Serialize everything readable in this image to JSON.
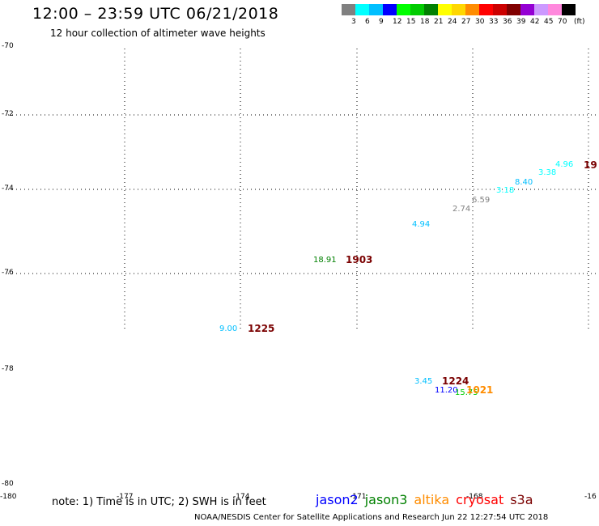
{
  "header": {
    "title": "12:00 – 23:59 UTC 06/21/2018",
    "subtitle": "12 hour collection of altimeter wave heights"
  },
  "legend": {
    "unit": "(ft)",
    "swatches": [
      {
        "label": "3",
        "color": "#808080"
      },
      {
        "label": "6",
        "color": "#00ffff"
      },
      {
        "label": "9",
        "color": "#00bfff"
      },
      {
        "label": "12",
        "color": "#0000ff"
      },
      {
        "label": "15",
        "color": "#00ff00"
      },
      {
        "label": "18",
        "color": "#00cc00"
      },
      {
        "label": "21",
        "color": "#008000"
      },
      {
        "label": "24",
        "color": "#ffff00"
      },
      {
        "label": "27",
        "color": "#ffd700"
      },
      {
        "label": "30",
        "color": "#ff8c00"
      },
      {
        "label": "33",
        "color": "#ff0000"
      },
      {
        "label": "36",
        "color": "#cc0000"
      },
      {
        "label": "39",
        "color": "#800000"
      },
      {
        "label": "42",
        "color": "#9400d3"
      },
      {
        "label": "45",
        "color": "#cc99ff"
      },
      {
        "label": "70",
        "color": "#ff88dd"
      },
      {
        "label": "",
        "color": "#000000"
      }
    ]
  },
  "axes": {
    "lat_labels": [
      "-70",
      "-72",
      "-74",
      "-76",
      "-78",
      "-80"
    ],
    "lon_labels": [
      "-180",
      "-177",
      "-174",
      "-171",
      "-168",
      "-16"
    ]
  },
  "observations": [
    {
      "text": "18.91",
      "color": "#008000",
      "kind": "swh"
    },
    {
      "text": "1903",
      "color": "#7a0000",
      "kind": "time"
    },
    {
      "text": "9.00",
      "color": "#00bfff",
      "kind": "swh"
    },
    {
      "text": "1225",
      "color": "#7a0000",
      "kind": "time"
    },
    {
      "text": "4.94",
      "color": "#00bfff",
      "kind": "swh"
    },
    {
      "text": "2.74",
      "color": "#808080",
      "kind": "swh"
    },
    {
      "text": "6.59",
      "color": "#808080",
      "kind": "swh"
    },
    {
      "text": "3.18",
      "color": "#00ffff",
      "kind": "swh"
    },
    {
      "text": "8.40",
      "color": "#00bfff",
      "kind": "swh"
    },
    {
      "text": "3.38",
      "color": "#00ffff",
      "kind": "swh"
    },
    {
      "text": "4.96",
      "color": "#00ffff",
      "kind": "swh"
    },
    {
      "text": "19",
      "color": "#7a0000",
      "kind": "time"
    },
    {
      "text": "3.45",
      "color": "#00bfff",
      "kind": "swh"
    },
    {
      "text": "1224",
      "color": "#7a0000",
      "kind": "time"
    },
    {
      "text": "11.20",
      "color": "#0000ff",
      "kind": "swh"
    },
    {
      "text": "15.75",
      "color": "#00cc00",
      "kind": "swh"
    },
    {
      "text": "1021",
      "color": "#ff8c00",
      "kind": "time"
    }
  ],
  "footer": {
    "note": "note: 1) Time is in UTC; 2) SWH is in feet",
    "satellites": [
      {
        "name": "jason2",
        "color": "#0000ff"
      },
      {
        "name": "jason3",
        "color": "#008000"
      },
      {
        "name": "altika",
        "color": "#ff8c00"
      },
      {
        "name": "cryosat",
        "color": "#ff0000"
      },
      {
        "name": "s3a",
        "color": "#7a0000"
      }
    ],
    "credit": "NOAA/NESDIS Center for Satellite Applications and Research    Jun 22 12:27:54 UTC 2018"
  }
}
